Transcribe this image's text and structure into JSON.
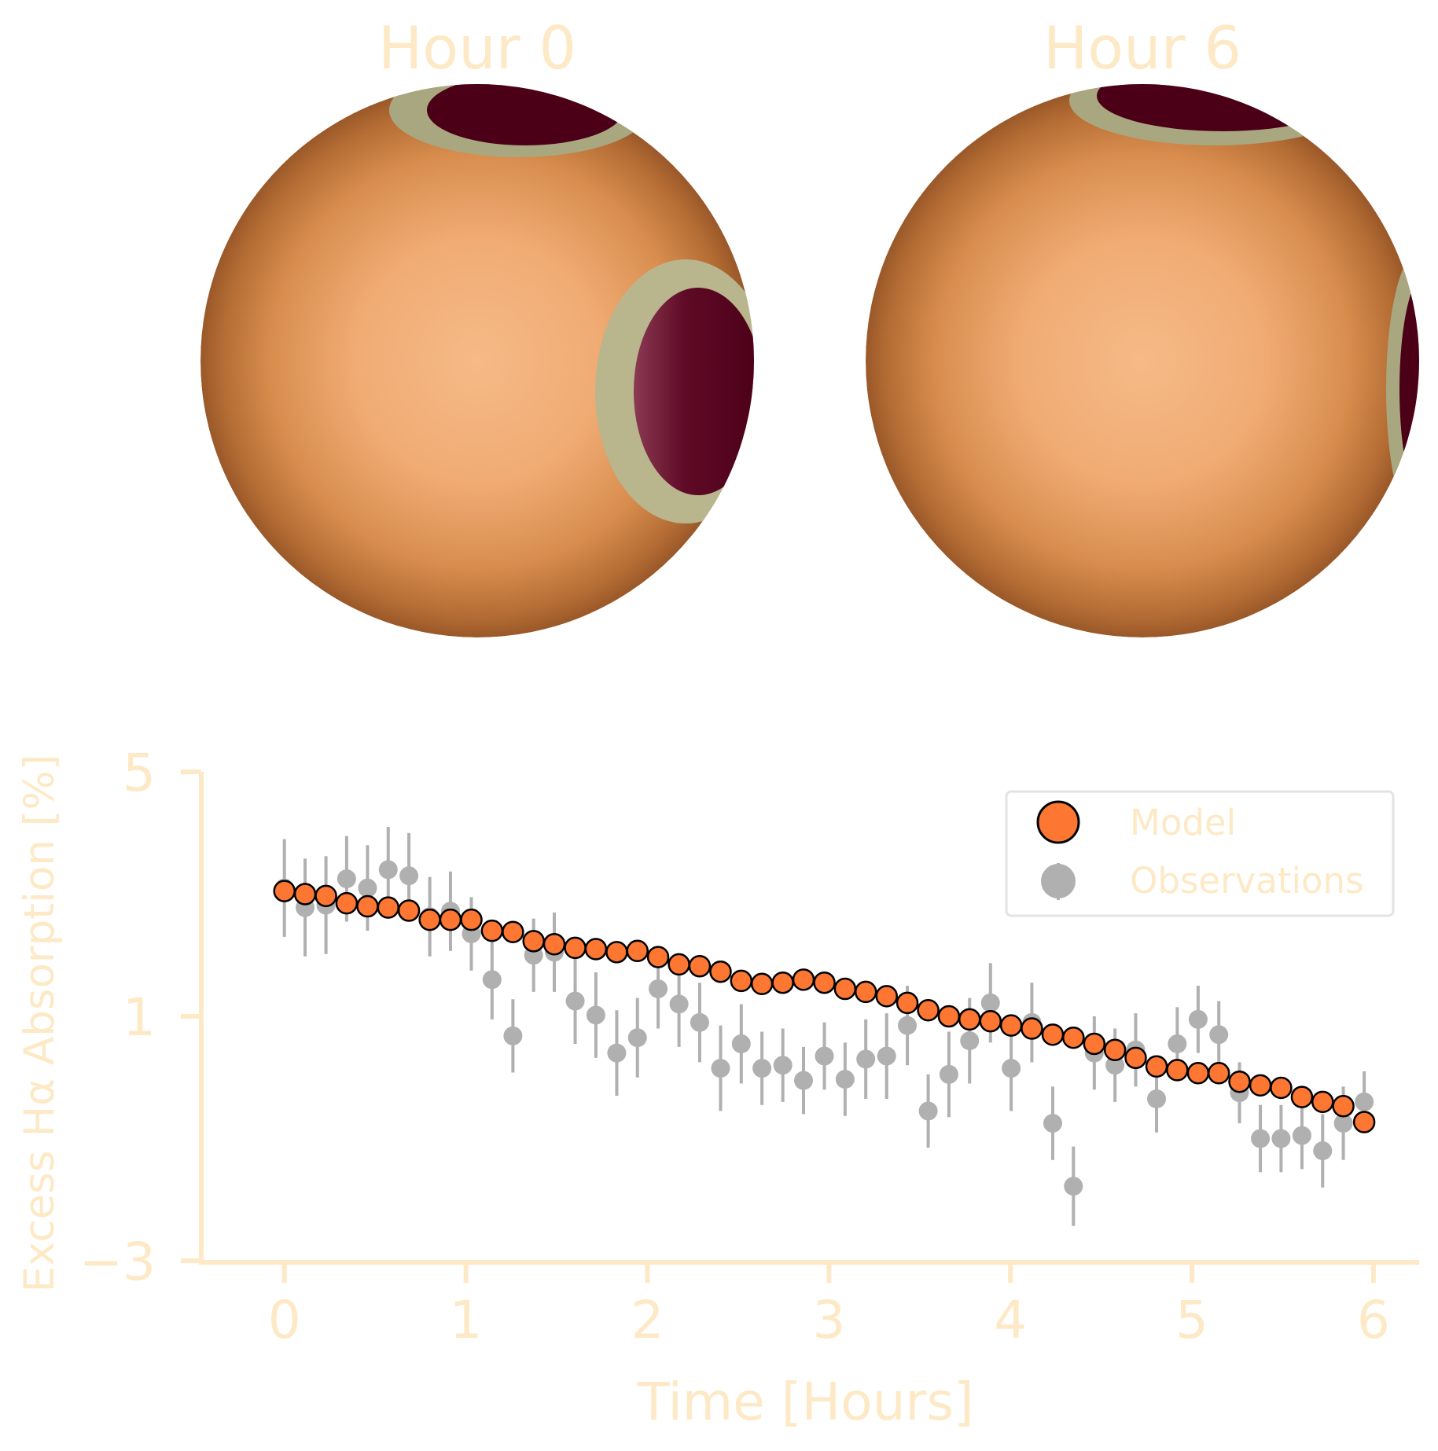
{
  "panels": [
    {
      "title": "Hour 0"
    },
    {
      "title": "Hour 6"
    }
  ],
  "colors": {
    "text": "#fde9c6",
    "axis": "#fde9c6",
    "star_center": "#f5b985",
    "star_limb": "#9a5829",
    "spot_core": "#4b0018",
    "spot_penumbra": "#a9a77f",
    "model": "#fd7733",
    "observations": "#b0b0b0"
  },
  "chart_data": {
    "type": "scatter",
    "title": "",
    "xlabel": "Time [Hours]",
    "ylabel": "Excess Hα Absorption [%]",
    "xlim": [
      -0.25,
      6.1
    ],
    "ylim": [
      -3,
      5
    ],
    "xticks": [
      "0",
      "1",
      "2",
      "3",
      "4",
      "5",
      "6"
    ],
    "yticks": [
      "−3",
      "1",
      "5"
    ],
    "legend": {
      "position": "top-right",
      "entries": [
        "Model",
        "Observations"
      ]
    },
    "x": [
      0.0,
      0.114,
      0.229,
      0.343,
      0.458,
      0.572,
      0.686,
      0.801,
      0.915,
      1.03,
      1.144,
      1.259,
      1.373,
      1.487,
      1.602,
      1.716,
      1.831,
      1.945,
      2.059,
      2.174,
      2.288,
      2.403,
      2.517,
      2.631,
      2.746,
      2.86,
      2.975,
      3.089,
      3.203,
      3.318,
      3.432,
      3.547,
      3.661,
      3.775,
      3.89,
      4.004,
      4.118,
      4.233,
      4.347,
      4.462,
      4.576,
      4.69,
      4.805,
      4.919,
      5.034,
      5.148,
      5.262,
      5.377,
      5.491,
      5.606,
      5.72,
      5.834,
      5.949
    ],
    "series": [
      {
        "name": "Model",
        "y": [
          3.05,
          3.0,
          2.97,
          2.85,
          2.8,
          2.78,
          2.73,
          2.58,
          2.58,
          2.58,
          2.4,
          2.38,
          2.23,
          2.18,
          2.12,
          2.1,
          2.05,
          2.07,
          1.97,
          1.85,
          1.82,
          1.73,
          1.58,
          1.53,
          1.55,
          1.6,
          1.55,
          1.45,
          1.4,
          1.33,
          1.22,
          1.1,
          1.0,
          0.95,
          0.92,
          0.85,
          0.8,
          0.7,
          0.65,
          0.55,
          0.45,
          0.32,
          0.18,
          0.12,
          0.07,
          0.07,
          -0.07,
          -0.13,
          -0.17,
          -0.32,
          -0.4,
          -0.47,
          -0.73
        ]
      },
      {
        "name": "Observations",
        "y": [
          3.1,
          2.78,
          2.82,
          3.25,
          3.1,
          3.4,
          3.3,
          2.63,
          2.72,
          2.35,
          1.6,
          0.68,
          2.0,
          2.05,
          1.25,
          1.02,
          0.4,
          0.65,
          1.45,
          1.2,
          0.9,
          0.15,
          0.55,
          0.15,
          0.2,
          -0.05,
          0.35,
          -0.03,
          0.3,
          0.35,
          0.85,
          -0.55,
          0.05,
          0.6,
          1.22,
          0.15,
          0.9,
          -0.75,
          -1.78,
          0.4,
          0.2,
          0.45,
          -0.35,
          0.55,
          0.95,
          0.7,
          -0.25,
          -1.0,
          -1.0,
          -0.95,
          -1.2,
          -0.75,
          -0.4
        ],
        "yerr": [
          0.8,
          0.8,
          0.8,
          0.7,
          0.7,
          0.7,
          0.7,
          0.65,
          0.65,
          0.6,
          0.65,
          0.6,
          0.6,
          0.65,
          0.7,
          0.7,
          0.7,
          0.65,
          0.65,
          0.7,
          0.65,
          0.7,
          0.65,
          0.6,
          0.6,
          0.55,
          0.55,
          0.6,
          0.65,
          0.7,
          0.65,
          0.6,
          0.7,
          0.7,
          0.65,
          0.7,
          0.65,
          0.6,
          0.65,
          0.6,
          0.6,
          0.6,
          0.55,
          0.6,
          0.55,
          0.55,
          0.5,
          0.55,
          0.55,
          0.55,
          0.6,
          0.6,
          0.5
        ]
      }
    ]
  }
}
